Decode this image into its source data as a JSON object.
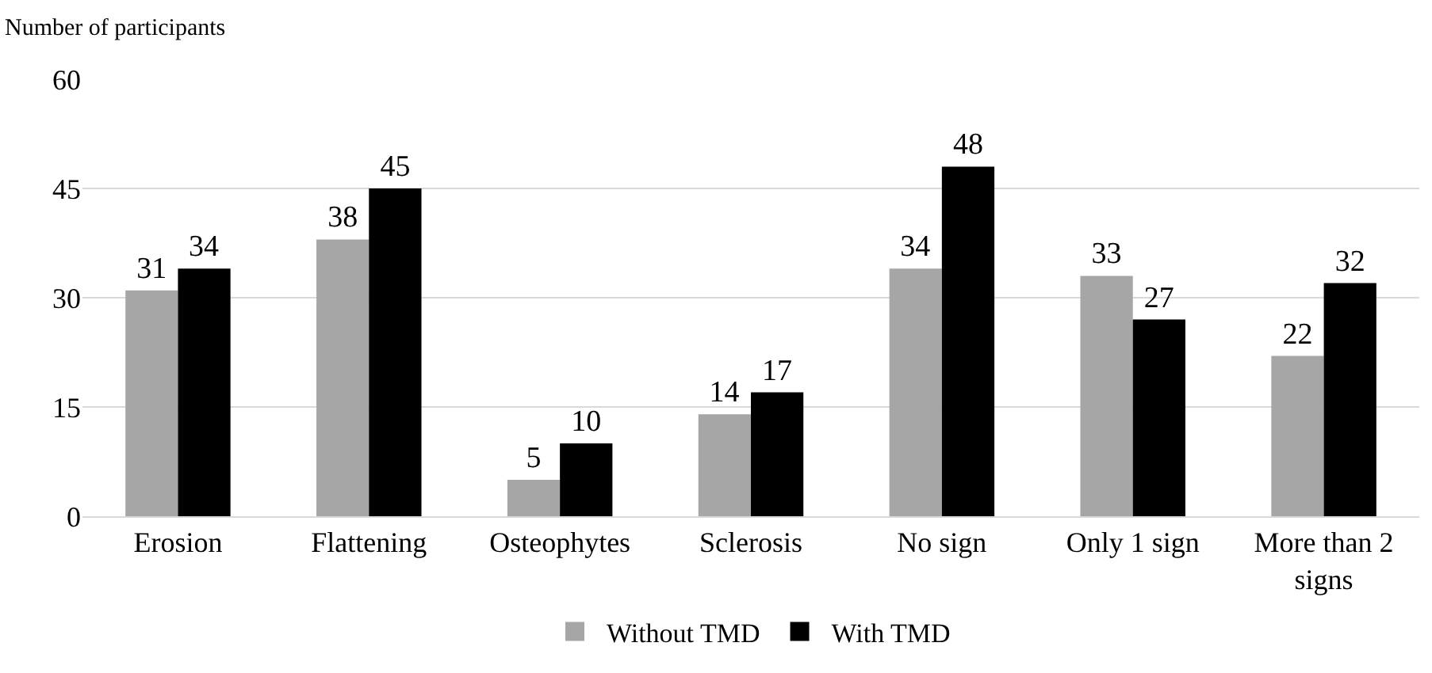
{
  "chart_data": {
    "type": "bar",
    "ylabel": "Number of participants",
    "categories": [
      "Erosion",
      "Flattening",
      "Osteophytes",
      "Sclerosis",
      "No sign",
      "Only 1 sign",
      "More than 2 signs"
    ],
    "series": [
      {
        "name": "Without TMD",
        "color": "#a6a6a6",
        "values": [
          31,
          38,
          5,
          14,
          34,
          33,
          22
        ]
      },
      {
        "name": "With TMD",
        "color": "#000000",
        "values": [
          34,
          45,
          10,
          17,
          48,
          27,
          32
        ]
      }
    ],
    "ylim": [
      0,
      60
    ],
    "yticks": [
      0,
      15,
      30,
      45,
      60
    ],
    "grid": "y",
    "legend": "bottom",
    "data_labels": true
  }
}
